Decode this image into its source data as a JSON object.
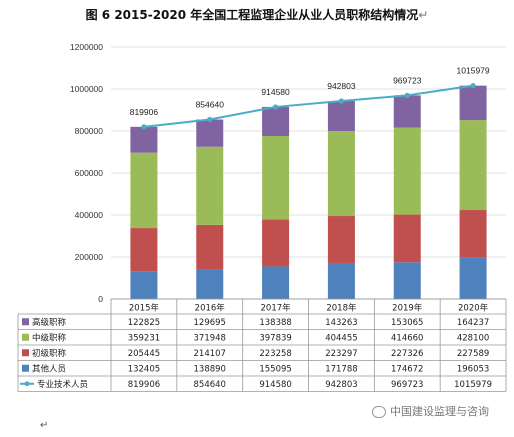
{
  "title": "图 6    2015-2020 年全国工程监理企业从业人员职称结构情况",
  "title_mark": "↵",
  "end_mark": "↵",
  "watermark": "中国建设监理与咨询",
  "watermark_icon": "wechat-icon",
  "chart_data": {
    "type": "bar",
    "stacked": true,
    "categories": [
      "2015年",
      "2016年",
      "2017年",
      "2018年",
      "2019年",
      "2020年"
    ],
    "ylim": [
      0,
      1200000
    ],
    "yticks": [
      "0",
      "200000",
      "400000",
      "600000",
      "800000",
      "1000000",
      "1200000"
    ],
    "grid": true,
    "legend": "table-bottom",
    "series": [
      {
        "name": "其他人员",
        "kind": "bar",
        "color": "#4f81bd",
        "values": [
          132405,
          138890,
          155095,
          171788,
          174672,
          196053
        ],
        "labels": [
          "132405",
          "138890",
          "155095",
          "171788",
          "174672",
          "196053"
        ]
      },
      {
        "name": "初级职称",
        "kind": "bar",
        "color": "#c0504d",
        "values": [
          205445,
          214107,
          223258,
          223297,
          227326,
          227589
        ],
        "labels": [
          "205445",
          "214107",
          "223258",
          "223297",
          "227326",
          "227589"
        ]
      },
      {
        "name": "中级职称",
        "kind": "bar",
        "color": "#9bbb59",
        "values": [
          359231,
          371948,
          397839,
          404455,
          414660,
          428100
        ],
        "labels": [
          "359231",
          "371948",
          "397839",
          "404455",
          "414660",
          "428100"
        ]
      },
      {
        "name": "高级职称",
        "kind": "bar",
        "color": "#8064a2",
        "values": [
          122825,
          129695,
          138388,
          143263,
          153065,
          164237
        ],
        "labels": [
          "122825",
          "129695",
          "138388",
          "143263",
          "153065",
          "164237"
        ]
      },
      {
        "name": "专业技术人员",
        "kind": "line",
        "color": "#4bacc6",
        "values": [
          819906,
          854640,
          914580,
          942803,
          969723,
          1015979
        ],
        "labels": [
          "819906",
          "854640",
          "914580",
          "942803",
          "969723",
          "1015979"
        ]
      }
    ],
    "table_row_order": [
      "高级职称",
      "中级职称",
      "初级职称",
      "其他人员",
      "专业技术人员"
    ]
  }
}
